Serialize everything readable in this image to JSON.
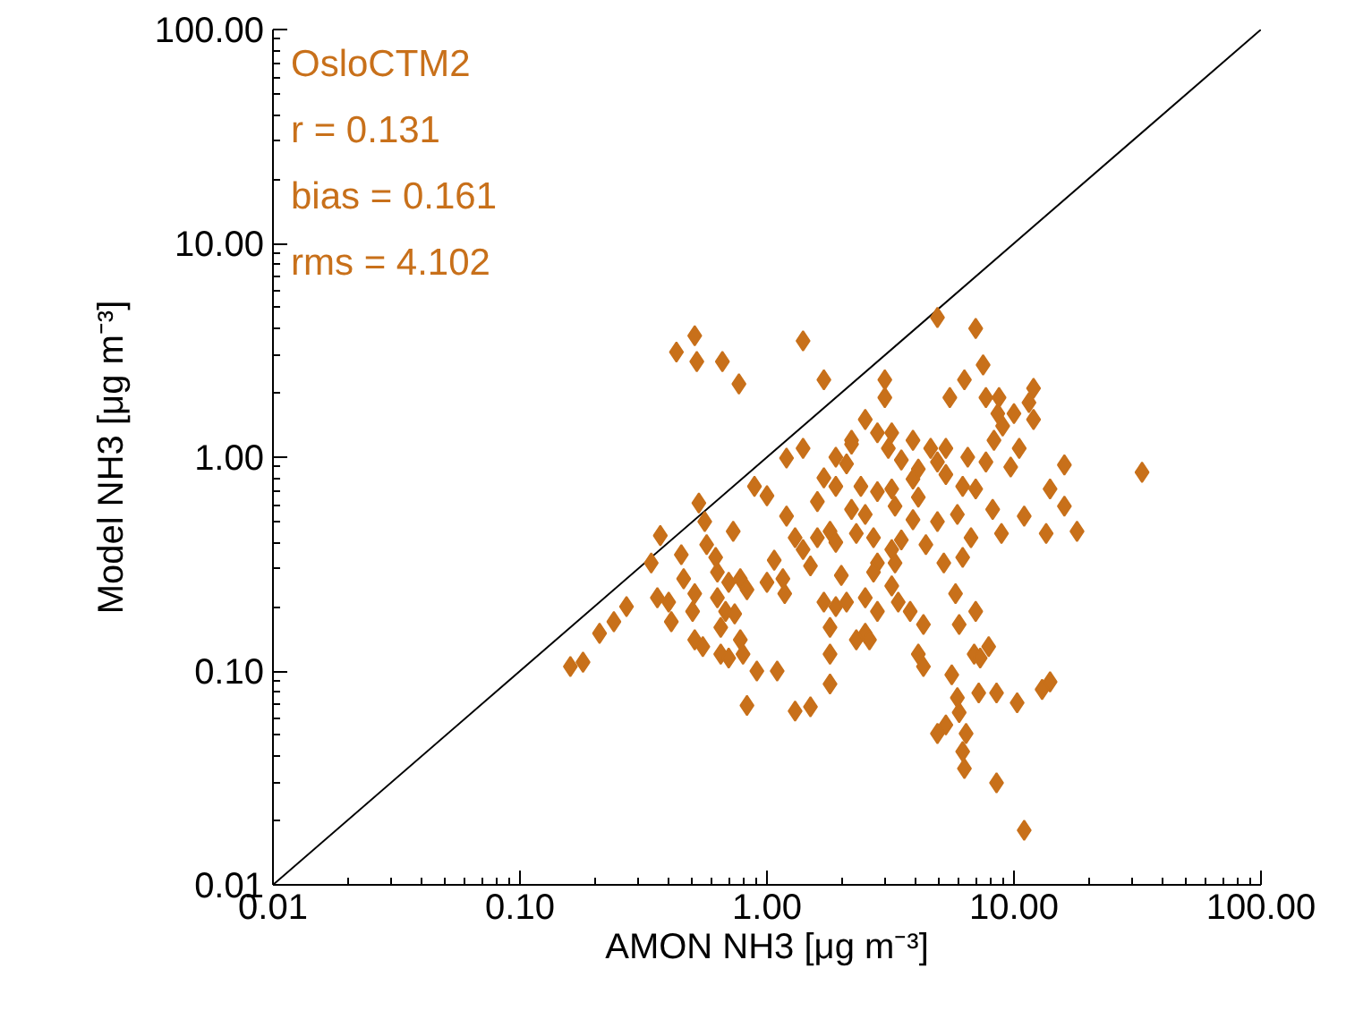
{
  "chart_data": {
    "type": "scatter",
    "xlabel": "AMON NH3 [μg m⁻³]",
    "ylabel": "Model NH3 [μg m⁻³]",
    "log": "xy",
    "grid": false,
    "marker": "diamond",
    "xlim": [
      0.01,
      100
    ],
    "ylim": [
      0.01,
      100
    ],
    "xticks": [
      0.01,
      {
        "value": 0.1,
        "label": "0.10"
      },
      {
        "value": 1,
        "label": "1.00"
      },
      {
        "value": 10,
        "label": "10.00"
      },
      {
        "value": 100,
        "label": "100.00"
      }
    ],
    "yticks": [
      0.01,
      {
        "value": 0.1,
        "label": "0.10"
      },
      {
        "value": 1,
        "label": "1.00"
      },
      {
        "value": 10,
        "label": "10.00"
      },
      {
        "value": 100,
        "label": "100.00"
      }
    ],
    "annotations": [
      "OsloCTM2",
      "r = 0.131",
      "bias = 0.161",
      "rms = 4.102"
    ],
    "series": [
      {
        "type": "line",
        "marker": "none",
        "color": "#000000",
        "x": [
          0.01,
          100
        ],
        "values": [
          0.01,
          100
        ]
      },
      {
        "color": "#c8701a",
        "x": [
          0.51,
          0.43,
          0.52,
          0.66,
          0.77,
          1.4,
          1.7,
          1.4,
          1.2,
          1.9,
          2.2,
          2.1,
          1.7,
          1.9,
          0.89,
          1.0,
          1.6,
          0.53,
          0.56,
          1.2,
          0.73,
          0.37,
          0.57,
          0.45,
          0.34,
          0.62,
          1.3,
          1.6,
          1.8,
          1.4,
          1.9,
          4.9,
          7.0,
          7.5,
          3.0,
          3.0,
          6.3,
          5.5,
          12,
          11.5,
          7.7,
          8.7,
          8.6,
          10,
          12,
          9.0,
          8.3,
          2.5,
          2.8,
          3.2,
          3.1,
          3.9,
          2.2,
          4.6,
          5.3,
          6.5,
          7.7,
          10.5,
          9.7,
          16,
          33,
          14,
          16,
          3.5,
          4.1,
          4.9,
          3.9,
          5.3,
          6.2,
          7.0,
          4.1,
          3.2,
          2.4,
          2.8,
          2.5,
          2.2,
          3.3,
          3.9,
          4.9,
          5.9,
          8.2,
          11,
          6.7,
          8.9,
          13.5,
          18,
          2.3,
          2.7,
          3.5,
          3.2,
          4.4,
          5.2,
          6.2,
          2.8,
          0.46,
          0.63,
          0.36,
          0.4,
          0.27,
          0.24,
          0.21,
          0.18,
          0.16,
          0.41,
          0.51,
          0.5,
          0.63,
          0.7,
          0.78,
          0.83,
          0.68,
          0.74,
          0.65,
          0.51,
          0.55,
          0.65,
          0.7,
          0.78,
          0.8,
          0.91,
          1.1,
          0.83,
          1.3,
          1.5,
          1.07,
          1.16,
          1.0,
          1.18,
          1.5,
          2.0,
          1.7,
          1.9,
          2.1,
          1.8,
          1.8,
          1.8,
          2.3,
          2.7,
          3.3,
          2.5,
          3.2,
          3.4,
          2.8,
          3.8,
          4.3,
          5.8,
          7.0,
          6.0,
          2.5,
          2.6,
          4.1,
          4.3,
          7.9,
          6.9,
          7.3,
          5.6,
          14,
          13,
          7.2,
          8.5,
          10.3,
          5.9,
          6.0,
          5.3,
          4.9,
          6.4,
          6.2,
          6.3,
          8.5,
          11
        ],
        "values": [
          3.7,
          3.1,
          2.8,
          2.8,
          2.2,
          3.5,
          2.3,
          1.1,
          0.99,
          1.0,
          1.2,
          0.93,
          0.8,
          0.73,
          0.73,
          0.66,
          0.62,
          0.61,
          0.5,
          0.53,
          0.45,
          0.43,
          0.39,
          0.35,
          0.32,
          0.34,
          0.42,
          0.42,
          0.45,
          0.37,
          0.4,
          4.5,
          4.0,
          2.7,
          2.3,
          1.9,
          2.3,
          1.9,
          2.1,
          1.8,
          1.9,
          1.9,
          1.6,
          1.6,
          1.5,
          1.4,
          1.2,
          1.5,
          1.3,
          1.3,
          1.1,
          1.2,
          1.15,
          1.1,
          1.1,
          1.0,
          0.95,
          1.1,
          0.9,
          0.92,
          0.85,
          0.71,
          0.59,
          0.97,
          0.88,
          0.95,
          0.79,
          0.83,
          0.73,
          0.71,
          0.65,
          0.71,
          0.73,
          0.69,
          0.54,
          0.57,
          0.59,
          0.51,
          0.5,
          0.54,
          0.57,
          0.53,
          0.42,
          0.44,
          0.44,
          0.45,
          0.44,
          0.42,
          0.41,
          0.37,
          0.39,
          0.32,
          0.34,
          0.32,
          0.27,
          0.29,
          0.22,
          0.21,
          0.2,
          0.17,
          0.15,
          0.11,
          0.105,
          0.17,
          0.23,
          0.19,
          0.22,
          0.26,
          0.27,
          0.24,
          0.19,
          0.185,
          0.16,
          0.14,
          0.13,
          0.12,
          0.115,
          0.14,
          0.12,
          0.1,
          0.1,
          0.069,
          0.065,
          0.068,
          0.33,
          0.27,
          0.26,
          0.23,
          0.31,
          0.28,
          0.21,
          0.2,
          0.21,
          0.16,
          0.12,
          0.087,
          0.14,
          0.29,
          0.32,
          0.22,
          0.25,
          0.21,
          0.19,
          0.19,
          0.165,
          0.23,
          0.19,
          0.165,
          0.15,
          0.14,
          0.12,
          0.105,
          0.13,
          0.12,
          0.115,
          0.096,
          0.089,
          0.082,
          0.079,
          0.079,
          0.071,
          0.075,
          0.064,
          0.056,
          0.051,
          0.051,
          0.042,
          0.035,
          0.03,
          0.018
        ]
      }
    ]
  }
}
